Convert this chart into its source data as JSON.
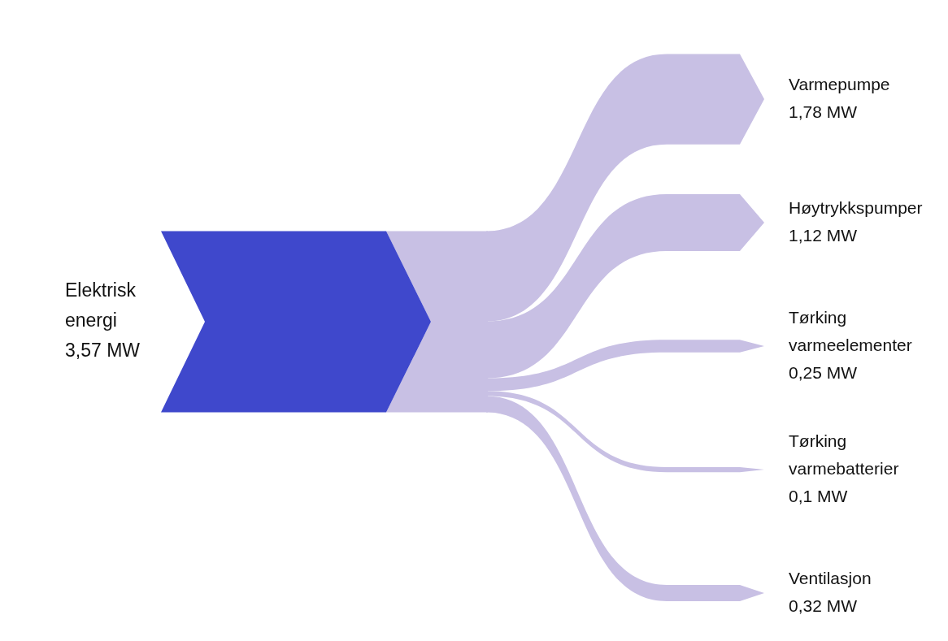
{
  "chart_data": {
    "type": "other",
    "categories": [
      "Elektrisk energi",
      "Varmepumpe",
      "Høytrykkspumper",
      "Tørking varmeelementer",
      "Tørking varmebatterier",
      "Ventilasjon"
    ],
    "values": [
      3.57,
      1.78,
      1.12,
      0.25,
      0.1,
      0.32
    ],
    "value_labels": [
      "3,57 MW",
      "1,78 MW",
      "1,12 MW",
      "0,25 MW",
      "0,1 MW",
      "0,32 MW"
    ],
    "colors": [
      "#3f48cc",
      "#c8c0e4",
      "#c8c0e4",
      "#c8c0e4",
      "#c8c0e4",
      "#c8c0e4"
    ]
  }
}
